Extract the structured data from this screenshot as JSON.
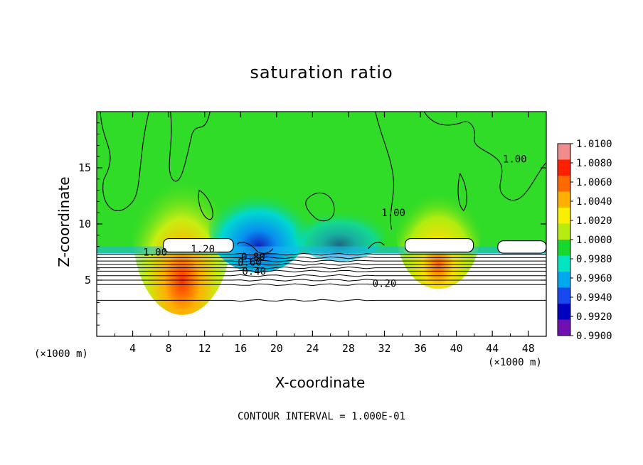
{
  "chart_data": {
    "type": "heatmap",
    "title": "saturation ratio",
    "xlabel": "X-coordinate",
    "ylabel": "Z-coordinate",
    "x_unit_left": "(×1000 m)",
    "x_unit_right": "(×1000 m)",
    "xlim": [
      0,
      50
    ],
    "ylim": [
      0,
      20
    ],
    "x_ticks": [
      4,
      8,
      12,
      16,
      20,
      24,
      28,
      32,
      36,
      40,
      44,
      48
    ],
    "y_ticks": [
      5,
      10,
      15
    ],
    "footer": "CONTOUR INTERVAL = 1.000E-01",
    "colorbar": {
      "labels": [
        "1.0100",
        "1.0080",
        "1.0060",
        "1.0040",
        "1.0020",
        "1.0000",
        "0.9980",
        "0.9960",
        "0.9940",
        "0.9920",
        "0.9900"
      ],
      "colors": [
        "#f08c8c",
        "#ff2000",
        "#ff6a00",
        "#ffb000",
        "#f8f000",
        "#b8ec10",
        "#18d830",
        "#00e6c0",
        "#00a8f0",
        "#1848f0",
        "#0000c0",
        "#7010b0"
      ]
    },
    "contour_labels": [
      {
        "text": "1.00",
        "x": 6.5,
        "y": 7.5
      },
      {
        "text": "1.20",
        "x": 11.8,
        "y": 7.8
      },
      {
        "text": "0.80",
        "x": 17.4,
        "y": 7.1
      },
      {
        "text": "0.60",
        "x": 17.0,
        "y": 6.6
      },
      {
        "text": "0.40",
        "x": 17.5,
        "y": 5.8
      },
      {
        "text": "0.20",
        "x": 32.0,
        "y": 4.7
      },
      {
        "text": "1.00",
        "x": 33.0,
        "y": 11.0
      },
      {
        "text": "1.00",
        "x": 46.5,
        "y": 15.8
      }
    ],
    "contour_levels_below": [
      0.2,
      0.4,
      0.6,
      0.8
    ]
  }
}
